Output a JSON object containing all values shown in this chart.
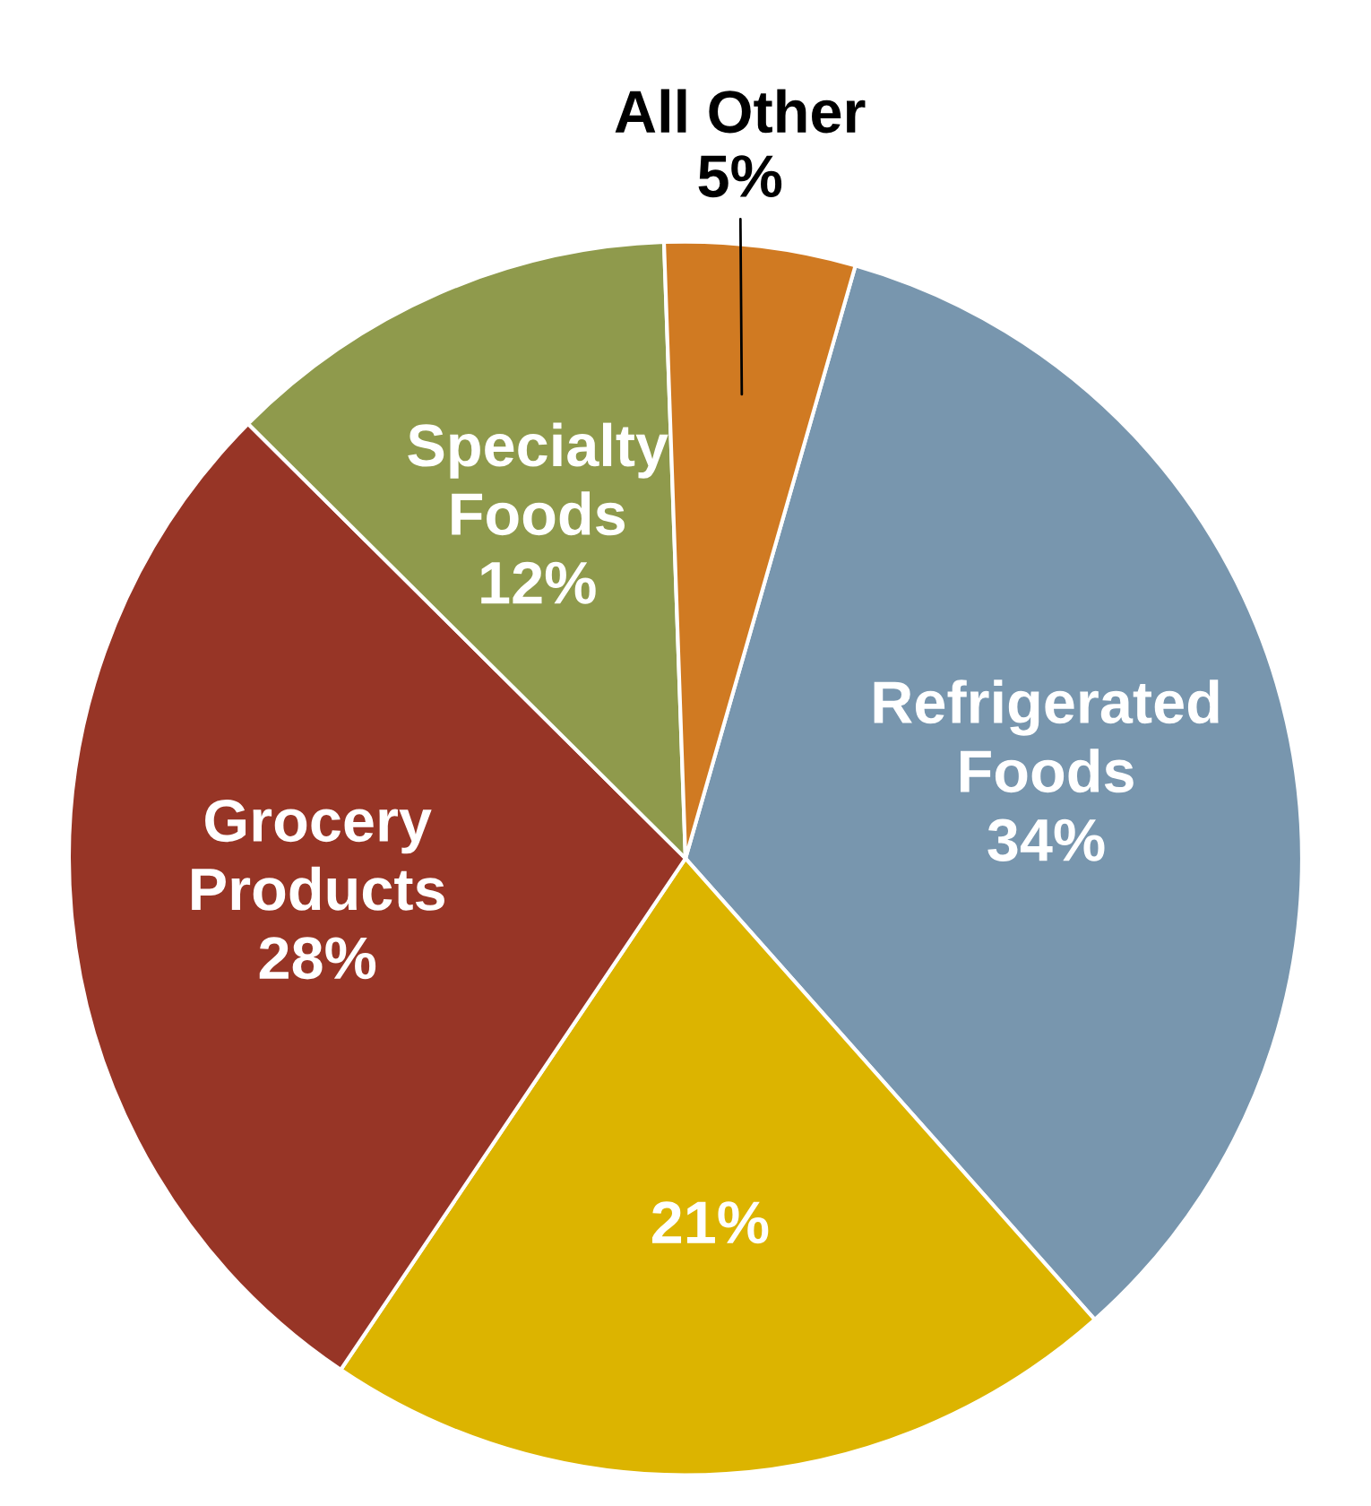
{
  "chart_data": {
    "type": "pie",
    "categories": [
      "Refrigerated Foods",
      null,
      "Grocery Products",
      "Specialty Foods",
      "All Other"
    ],
    "values": [
      34,
      21,
      28,
      12,
      5
    ],
    "colors": [
      "#7896ae",
      "#dcb400",
      "#973526",
      "#8f9a4c",
      "#d07a22"
    ],
    "value_labels": [
      "34%",
      "21%",
      "28%",
      "12%",
      "5%"
    ]
  }
}
